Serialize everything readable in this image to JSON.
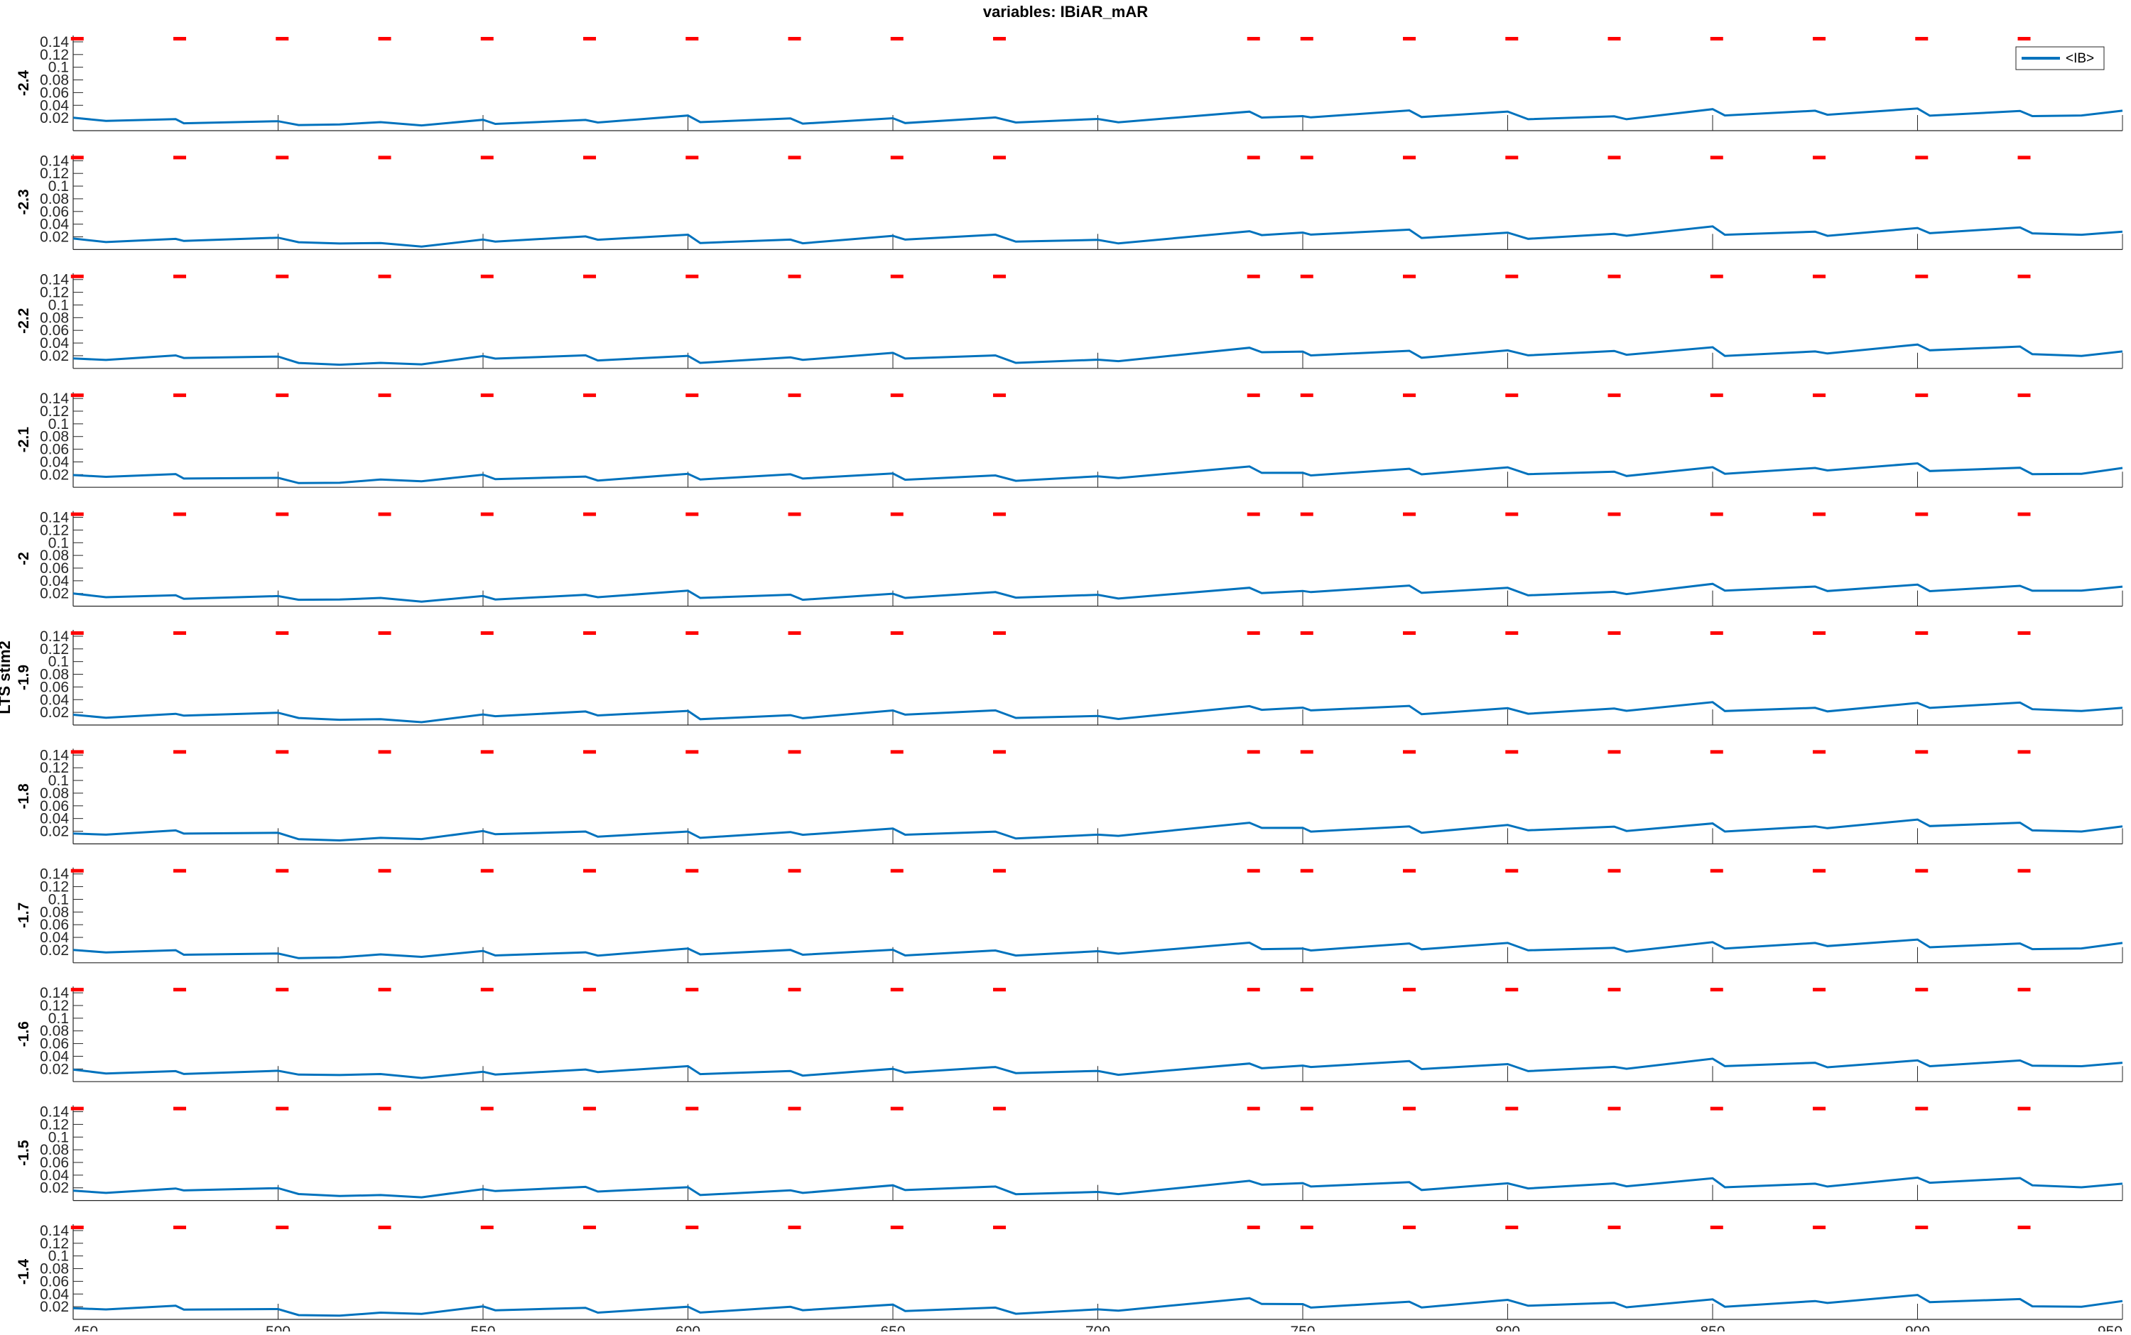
{
  "chart_data": {
    "type": "line",
    "title": "variables: IBiAR_mAR",
    "ylabel_shared": "LTS stim2",
    "legend": {
      "entries": [
        "<IB>"
      ],
      "placement": "top-right"
    },
    "xlim": [
      450,
      950
    ],
    "xticks": [
      450,
      500,
      550,
      600,
      650,
      700,
      750,
      800,
      850,
      900,
      950
    ],
    "ylim": [
      0,
      0.15
    ],
    "yticks": [
      0.02,
      0.04,
      0.06,
      0.08,
      0.1,
      0.12,
      0.14
    ],
    "ytick_labels": [
      "0.02",
      "0.04",
      "0.06",
      "0.08",
      "0.1",
      "0.12",
      "0.14"
    ],
    "grid": false,
    "series_color": "#0072BD",
    "marker_color": "#FF0000",
    "stim_marker_y": 0.145,
    "stim_marker_x": [
      451,
      476,
      501,
      526,
      551,
      576,
      601,
      626,
      651,
      676,
      738,
      751,
      776,
      801,
      826,
      851,
      876,
      901,
      926
    ],
    "panel_labels": [
      "-2.4",
      "-2.3",
      "-2.2",
      "-2.1",
      "-2",
      "-1.9",
      "-1.8",
      "-1.7",
      "-1.6",
      "-1.5",
      "-1.4"
    ],
    "series": [
      {
        "name": "<IB>",
        "x": [
          450,
          458,
          475,
          477,
          500,
          505,
          515,
          525,
          535,
          550,
          553,
          575,
          578,
          600,
          603,
          625,
          628,
          650,
          653,
          675,
          680,
          700,
          705,
          737,
          740,
          750,
          752,
          776,
          779,
          800,
          805,
          826,
          829,
          850,
          853,
          875,
          878,
          900,
          903,
          925,
          928,
          940,
          950
        ],
        "values": [
          0.018,
          0.014,
          0.019,
          0.014,
          0.017,
          0.009,
          0.008,
          0.011,
          0.007,
          0.018,
          0.013,
          0.019,
          0.013,
          0.022,
          0.011,
          0.018,
          0.012,
          0.022,
          0.014,
          0.021,
          0.011,
          0.016,
          0.012,
          0.031,
          0.023,
          0.025,
          0.021,
          0.03,
          0.019,
          0.029,
          0.019,
          0.025,
          0.02,
          0.034,
          0.022,
          0.029,
          0.024,
          0.036,
          0.026,
          0.033,
          0.023,
          0.022,
          0.029
        ]
      }
    ]
  }
}
